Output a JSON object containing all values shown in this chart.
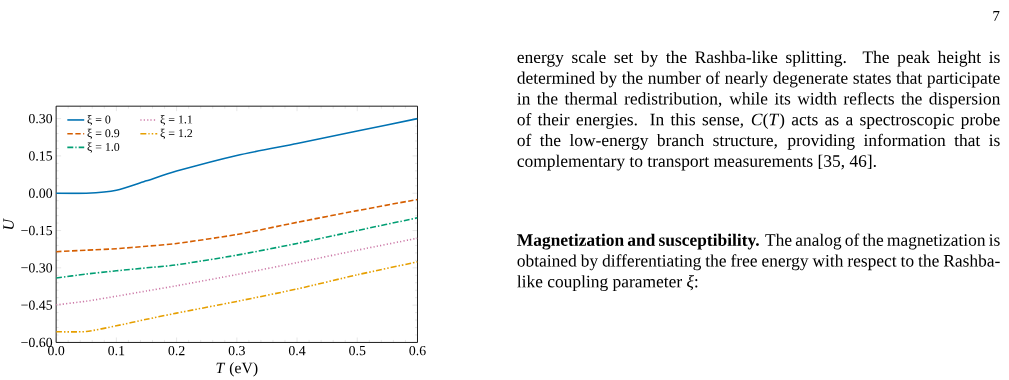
{
  "chart_data": {
    "type": "line",
    "xlabel": "*T* (eV)",
    "ylabel": "*U*",
    "legend": "top left",
    "x": [
      0,
      0.05,
      0.1,
      0.15,
      0.2,
      0.3,
      0.4,
      0.5,
      0.6
    ],
    "xlim": [
      0,
      0.6
    ],
    "ylim": [
      -0.6,
      0.35
    ],
    "xticks": [
      {
        "value": 0,
        "label": "0.0"
      },
      0.1,
      0.2,
      0.3,
      0.4,
      0.5,
      0.6
    ],
    "yticks": [
      {
        "value": -0.6,
        "label": "−0.60"
      },
      {
        "value": -0.45,
        "label": "−0.45"
      },
      {
        "value": -0.3,
        "label": "−0.30"
      },
      {
        "value": -0.15,
        "label": "−0.15"
      },
      {
        "value": 0,
        "label": "0.00"
      },
      0.15,
      {
        "value": 0.3,
        "label": "0.30"
      }
    ],
    "series": [
      {
        "name": "ξ = 0",
        "color": "#0072b2",
        "line_style": "solid",
        "values": [
          0,
          0,
          0.012,
          0.05,
          0.089,
          0.152,
          0.2,
          0.25,
          0.3
        ]
      },
      {
        "name": "ξ = 0.9",
        "color": "#d55e00",
        "line_style": "dashed",
        "values": [
          -0.235,
          -0.229,
          -0.223,
          -0.213,
          -0.202,
          -0.166,
          -0.117,
          -0.07,
          -0.025
        ]
      },
      {
        "name": "ξ = 1.0",
        "color": "#009e73",
        "line_style": "dashdot",
        "values": [
          -0.341,
          -0.325,
          -0.312,
          -0.3,
          -0.288,
          -0.249,
          -0.202,
          -0.15,
          -0.099
        ]
      },
      {
        "name": "ξ = 1.1",
        "color": "#cc79a7",
        "line_style": "dotted",
        "values": [
          -0.449,
          -0.434,
          -0.414,
          -0.393,
          -0.372,
          -0.327,
          -0.279,
          -0.229,
          -0.181
        ]
      },
      {
        "name": "ξ = 1.2",
        "color": "#e69f00",
        "line_style": "dashdotdot",
        "values": [
          -0.557,
          -0.556,
          -0.533,
          -0.507,
          -0.482,
          -0.435,
          -0.385,
          -0.328,
          -0.276
        ]
      }
    ],
    "annotations": [
      "7",
      "energy scale set by the Rashba-like splitting. The peak height is determined by the number of nearly degenerate states that participate in the thermal redistribution, while its width reflects the dispersion of their energies. In this sense, *C*(*T*) acts as a spectroscopic probe of the low-energy branch structure, providing information that is complementary to transport measurements [35, 46].",
      "**Magnetization and susceptibility.** The analog of the magnetization is obtained by differentiating the free energy with respect to the Rashba-like coupling parameter *ξ*:"
    ]
  }
}
